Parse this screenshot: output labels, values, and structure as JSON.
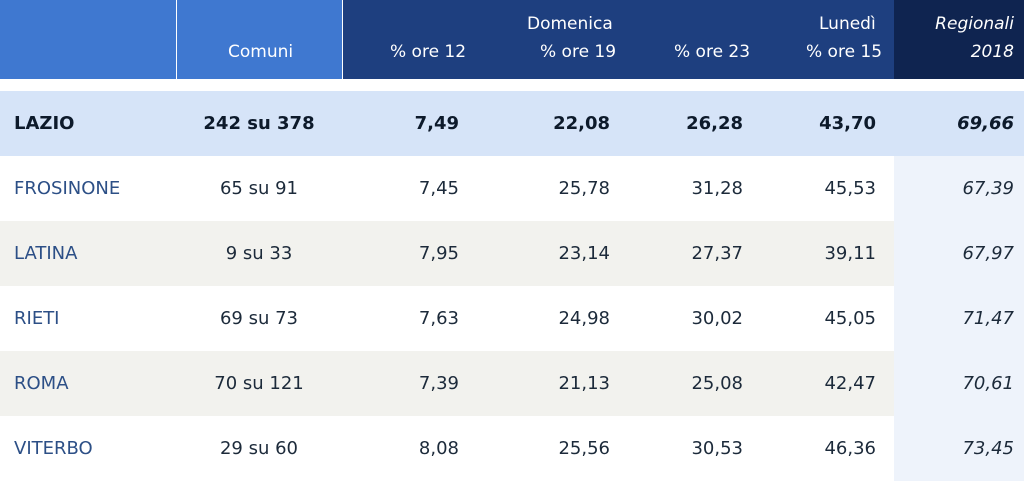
{
  "header": {
    "comuni": "Comuni",
    "domenica": "Domenica",
    "lunedi": "Lunedì",
    "ore12": "% ore 12",
    "ore19": "% ore 19",
    "ore23": "% ore 23",
    "ore15": "% ore 15",
    "regionali": "Regionali",
    "regionali_year": "2018"
  },
  "total": {
    "name": "LAZIO",
    "comuni": "242 su 378",
    "ore12": "7,49",
    "ore19": "22,08",
    "ore23": "26,28",
    "ore15": "43,70",
    "regionali": "69,66"
  },
  "rows": [
    {
      "name": "FROSINONE",
      "comuni": "65 su 91",
      "ore12": "7,45",
      "ore19": "25,78",
      "ore23": "31,28",
      "ore15": "45,53",
      "regionali": "67,39"
    },
    {
      "name": "LATINA",
      "comuni": "9 su 33",
      "ore12": "7,95",
      "ore19": "23,14",
      "ore23": "27,37",
      "ore15": "39,11",
      "regionali": "67,97"
    },
    {
      "name": "RIETI",
      "comuni": "69 su 73",
      "ore12": "7,63",
      "ore19": "24,98",
      "ore23": "30,02",
      "ore15": "45,05",
      "regionali": "71,47"
    },
    {
      "name": "ROMA",
      "comuni": "70 su 121",
      "ore12": "7,39",
      "ore19": "21,13",
      "ore23": "25,08",
      "ore15": "42,47",
      "regionali": "70,61"
    },
    {
      "name": "VITERBO",
      "comuni": "29 su 60",
      "ore12": "8,08",
      "ore19": "25,56",
      "ore23": "30,53",
      "ore15": "46,36",
      "regionali": "73,45"
    }
  ],
  "colors": {
    "header_light": "#3f78d0",
    "header_dark": "#1e3f7f",
    "header_darkest": "#0f2450",
    "total_row": "#d6e4f8",
    "row_alt": "#f2f2ee",
    "regional_col": "#eef3fb",
    "province_text": "#2c4f86"
  }
}
